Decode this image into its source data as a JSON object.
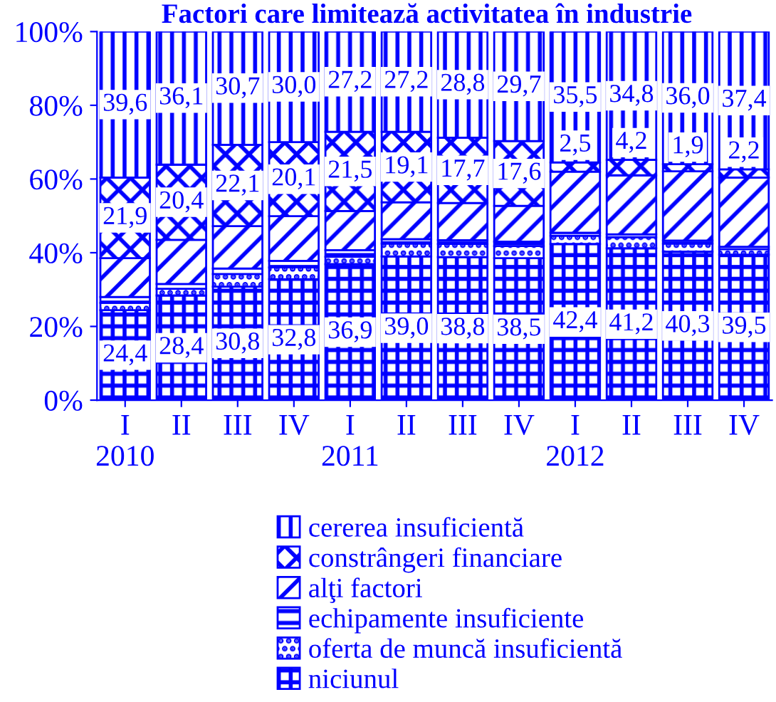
{
  "chart_data": {
    "type": "bar",
    "stacked": true,
    "title": "Factori care limitează activitatea în industrie",
    "categories": [
      "I\n2010",
      "II",
      "III",
      "IV",
      "I\n2011",
      "II",
      "III",
      "IV",
      "I\n2012",
      "II",
      "III",
      "IV"
    ],
    "series": [
      {
        "name": "niciunul",
        "color": "#0000ff",
        "values": [
          24.4,
          28.4,
          30.8,
          32.8,
          36.9,
          39.0,
          38.8,
          38.5,
          42.4,
          41.2,
          40.3,
          39.5
        ],
        "value_labels": [
          "24,4",
          "28,4",
          "30,8",
          "32,8",
          "36,9",
          "39,0",
          "38,8",
          "38,5",
          "42,4",
          "41,2",
          "40,3",
          "39,5"
        ]
      },
      {
        "name": "oferta de muncă insuficientă",
        "color": "#0000ff",
        "values": [
          2.0,
          1.8,
          3.4,
          3.2,
          2.0,
          3.5,
          3.6,
          3.3,
          2.2,
          3.0,
          2.2,
          1.5
        ]
      },
      {
        "name": "echipamente insuficiente",
        "color": "#0000ff",
        "values": [
          1.6,
          1.3,
          1.5,
          1.8,
          1.8,
          1.2,
          1.0,
          1.2,
          0.8,
          0.8,
          0.8,
          0.6
        ]
      },
      {
        "name": "alţi factori",
        "color": "#0000ff",
        "values": [
          10.5,
          12.0,
          11.5,
          12.1,
          10.6,
          10.0,
          10.1,
          9.7,
          16.6,
          16.0,
          18.8,
          18.8
        ]
      },
      {
        "name": "constrângeri financiare",
        "color": "#0000ff",
        "values": [
          21.9,
          20.4,
          22.1,
          20.1,
          21.5,
          19.1,
          17.7,
          17.6,
          2.5,
          4.2,
          1.9,
          2.2
        ],
        "value_labels": [
          "21,9",
          "20,4",
          "22,1",
          "20,1",
          "21,5",
          "19,1",
          "17,7",
          "17,6",
          "2,5",
          "4,2",
          "1,9",
          "2,2"
        ]
      },
      {
        "name": "cererea insuficientă",
        "color": "#0000ff",
        "values": [
          39.6,
          36.1,
          30.7,
          30.0,
          27.2,
          27.2,
          28.8,
          29.7,
          35.5,
          34.8,
          36.0,
          37.4
        ],
        "value_labels": [
          "39,6",
          "36,1",
          "30,7",
          "30,0",
          "27,2",
          "27,2",
          "28,8",
          "29,7",
          "35,5",
          "34,8",
          "36,0",
          "37,4"
        ]
      }
    ],
    "ylim": [
      0,
      100
    ],
    "yticks": [
      {
        "value": 0,
        "label": "0%"
      },
      {
        "value": 20,
        "label": "20%"
      },
      {
        "value": 40,
        "label": "40%"
      },
      {
        "value": 60,
        "label": "60%"
      },
      {
        "value": 80,
        "label": "80%"
      },
      {
        "value": 100,
        "label": "100%"
      }
    ],
    "grid": false,
    "legend": "bottom"
  }
}
